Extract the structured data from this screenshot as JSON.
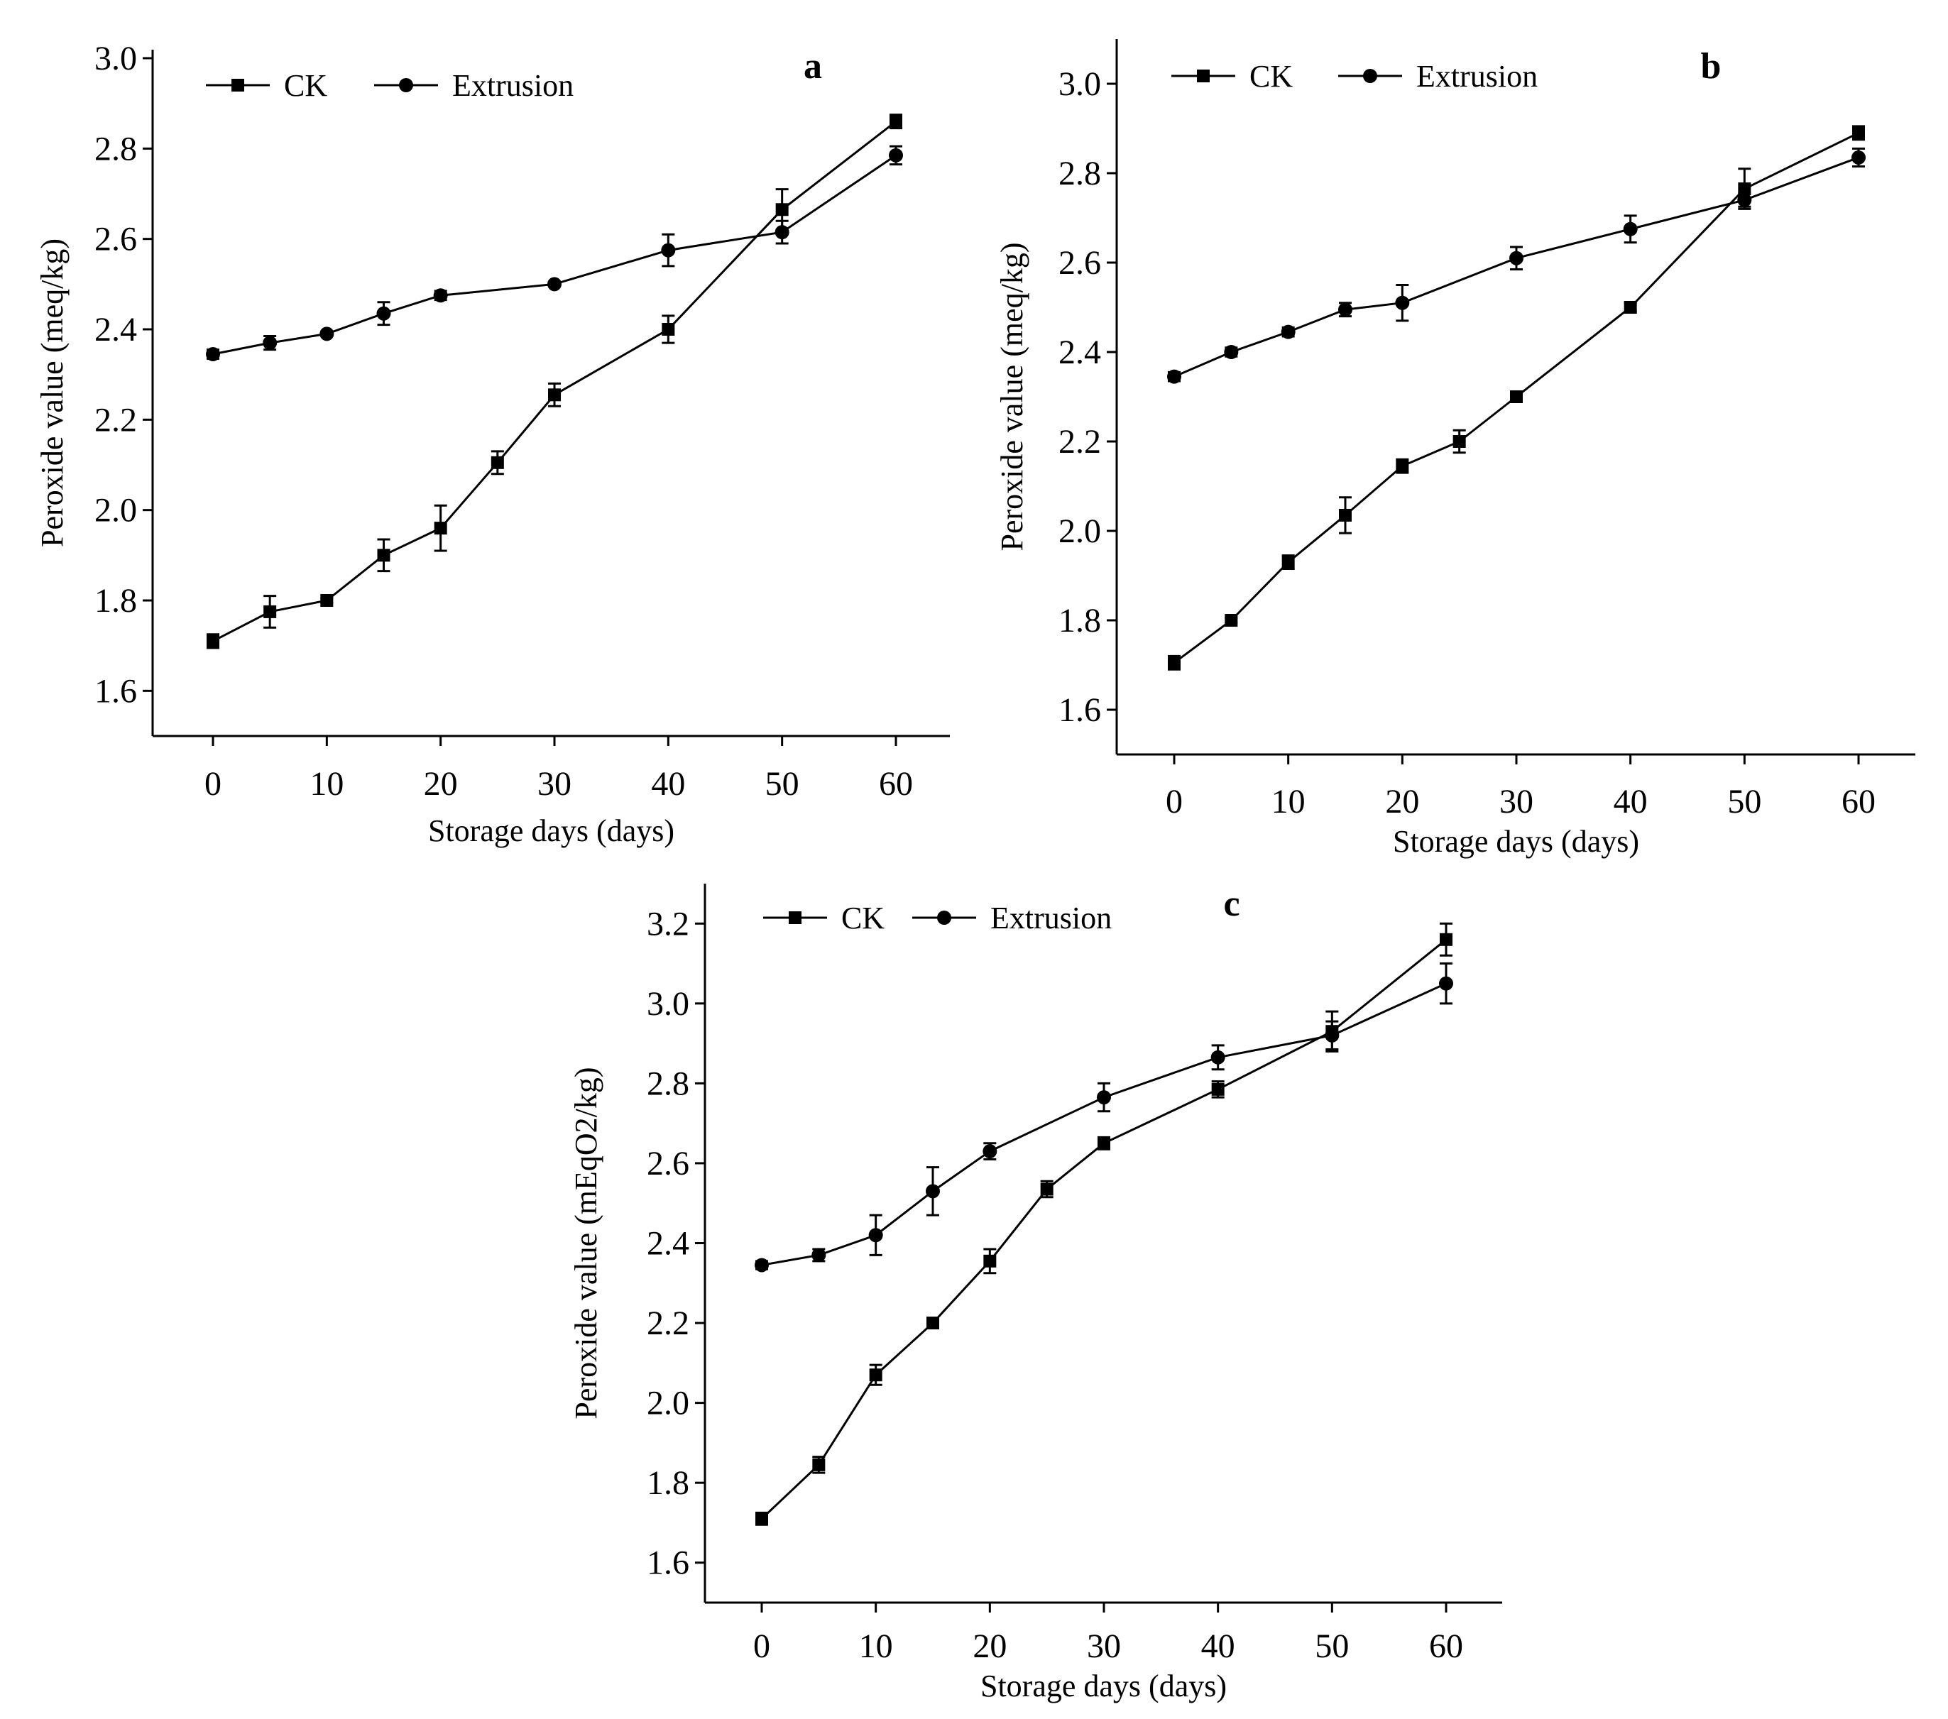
{
  "chart_data": [
    {
      "type": "line",
      "panel": "a",
      "title": "a",
      "xlabel": "Storage days (days)",
      "ylabel": "Peroxide value (meq/kg)",
      "ylim": [
        1.5,
        3.0
      ],
      "xticks": [
        0,
        10,
        20,
        30,
        40,
        50,
        60
      ],
      "yticks": [
        1.6,
        1.8,
        2.0,
        2.2,
        2.4,
        2.6,
        2.8,
        3.0
      ],
      "x": [
        0,
        5,
        10,
        15,
        20,
        25,
        30,
        40,
        50,
        60
      ],
      "legend_position": "top-left",
      "series": [
        {
          "name": "CK",
          "marker": "square",
          "x": [
            0,
            5,
            10,
            15,
            20,
            25,
            30,
            40,
            50,
            60
          ],
          "values": [
            1.71,
            1.775,
            1.8,
            1.9,
            1.96,
            2.105,
            2.255,
            2.4,
            2.665,
            2.86
          ],
          "errors": [
            0.015,
            0.035,
            0.005,
            0.035,
            0.05,
            0.025,
            0.025,
            0.03,
            0.045,
            0.015
          ]
        },
        {
          "name": "Extrusion",
          "marker": "circle",
          "x": [
            0,
            5,
            10,
            15,
            20,
            30,
            40,
            50,
            60
          ],
          "values": [
            2.345,
            2.37,
            2.39,
            2.435,
            2.475,
            2.5,
            2.575,
            2.615,
            2.785
          ],
          "errors": [
            0.01,
            0.015,
            0.005,
            0.025,
            0.01,
            0.005,
            0.035,
            0.025,
            0.02
          ]
        }
      ]
    },
    {
      "type": "line",
      "panel": "b",
      "title": "b",
      "xlabel": "Storage days (days)",
      "ylabel": "Peroxide value (meq/kg)",
      "ylim": [
        1.5,
        3.1
      ],
      "xticks": [
        0,
        10,
        20,
        30,
        40,
        50,
        60
      ],
      "yticks": [
        1.6,
        1.8,
        2.0,
        2.2,
        2.4,
        2.6,
        2.8,
        3.0
      ],
      "x": [
        0,
        5,
        10,
        15,
        20,
        25,
        30,
        40,
        50,
        60
      ],
      "legend_position": "top-left",
      "series": [
        {
          "name": "CK",
          "marker": "square",
          "x": [
            0,
            5,
            10,
            15,
            20,
            25,
            30,
            40,
            50,
            60
          ],
          "values": [
            1.705,
            1.8,
            1.93,
            2.035,
            2.145,
            2.2,
            2.3,
            2.5,
            2.765,
            2.89
          ],
          "errors": [
            0.015,
            0.005,
            0.015,
            0.04,
            0.015,
            0.025,
            0.005,
            0.01,
            0.045,
            0.015
          ]
        },
        {
          "name": "Extrusion",
          "marker": "circle",
          "x": [
            0,
            5,
            10,
            15,
            20,
            30,
            40,
            50,
            60
          ],
          "values": [
            2.345,
            2.4,
            2.445,
            2.495,
            2.51,
            2.61,
            2.675,
            2.74,
            2.835
          ],
          "errors": [
            0.01,
            0.01,
            0.01,
            0.015,
            0.04,
            0.025,
            0.03,
            0.015,
            0.02
          ]
        }
      ]
    },
    {
      "type": "line",
      "panel": "c",
      "title": "c",
      "xlabel": "Storage days (days)",
      "ylabel": "Peroxide value (mEqO2/kg)",
      "ylim": [
        1.5,
        3.3
      ],
      "xticks": [
        0,
        10,
        20,
        30,
        40,
        50,
        60
      ],
      "yticks": [
        1.6,
        1.8,
        2.0,
        2.2,
        2.4,
        2.6,
        2.8,
        3.0,
        3.2
      ],
      "x": [
        0,
        5,
        10,
        15,
        20,
        25,
        30,
        40,
        50,
        60
      ],
      "legend_position": "top-left",
      "series": [
        {
          "name": "CK",
          "marker": "square",
          "x": [
            0,
            5,
            10,
            15,
            20,
            25,
            30,
            40,
            50,
            60
          ],
          "values": [
            1.71,
            1.845,
            2.07,
            2.2,
            2.355,
            2.535,
            2.65,
            2.785,
            2.93,
            3.16
          ],
          "errors": [
            0.015,
            0.02,
            0.025,
            0.005,
            0.03,
            0.02,
            0.015,
            0.02,
            0.05,
            0.04
          ]
        },
        {
          "name": "Extrusion",
          "marker": "circle",
          "x": [
            0,
            5,
            10,
            15,
            20,
            30,
            40,
            50,
            60
          ],
          "values": [
            2.345,
            2.37,
            2.42,
            2.53,
            2.63,
            2.765,
            2.865,
            2.92,
            3.05
          ],
          "errors": [
            0.01,
            0.015,
            0.05,
            0.06,
            0.02,
            0.035,
            0.03,
            0.035,
            0.05
          ]
        }
      ]
    }
  ]
}
